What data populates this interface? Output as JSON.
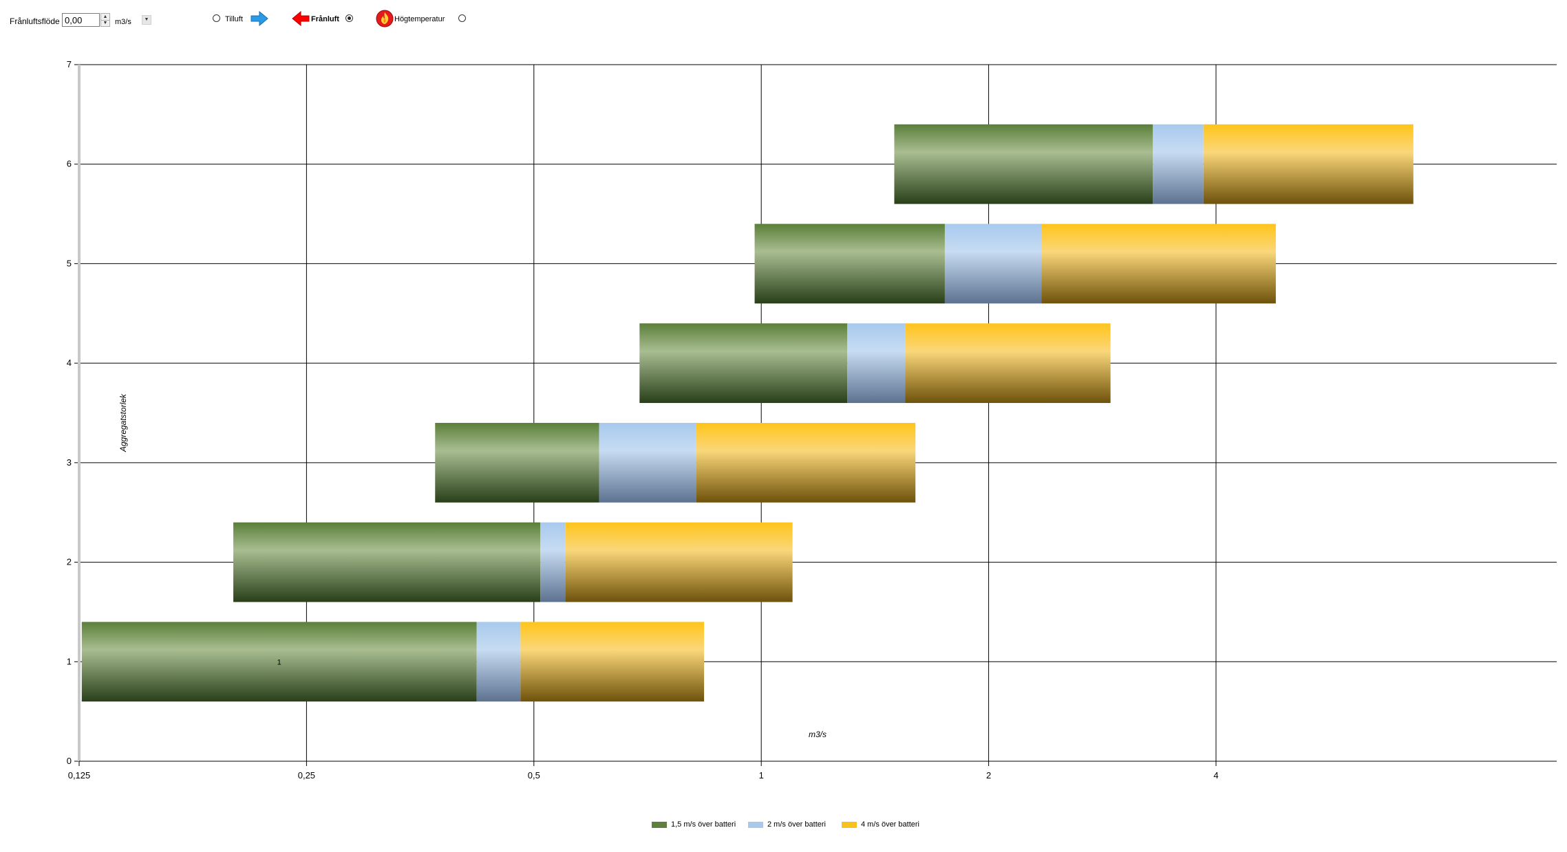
{
  "toolbar": {
    "flow_label": "Frånluftsflöde",
    "flow_value": "0,00",
    "unit_label": "m3/s",
    "radios": [
      {
        "label": "Tilluft",
        "checked": false,
        "icon": "arrow-right-icon"
      },
      {
        "label": "Frånluft",
        "checked": true,
        "icon": "arrow-left-icon"
      },
      {
        "label": "Högtemperatur",
        "checked": false,
        "icon": "fire-icon"
      }
    ]
  },
  "colors": {
    "green": "#5e7f3e",
    "blue": "#a9c8ea",
    "yellow": "#f6c21f",
    "grid": "#000000",
    "axis": "#c8c8c8"
  },
  "chart_data": {
    "type": "bar",
    "orientation": "horizontal",
    "stacked": true,
    "x_scale": "log2",
    "xlabel": "m3/s",
    "ylabel": "Aggregatstorlek",
    "xlim": [
      0.125,
      11.3
    ],
    "ylim": [
      0,
      7
    ],
    "x_ticks": [
      "0,125",
      "0,25",
      "0,5",
      "1",
      "2",
      "4"
    ],
    "x_tick_values": [
      0.125,
      0.25,
      0.5,
      1,
      2,
      4
    ],
    "y_ticks": [
      "0",
      "1",
      "2",
      "3",
      "4",
      "5",
      "6",
      "7"
    ],
    "categories": [
      "1",
      "2",
      "3",
      "4",
      "5",
      "6"
    ],
    "category_positions": [
      1,
      2,
      3,
      4,
      5,
      6
    ],
    "bar_start": [
      0.126,
      0.2,
      0.37,
      0.69,
      0.98,
      1.5
    ],
    "series": [
      {
        "name": "1,5 m/s över batteri",
        "color": "#5e7f3e",
        "end": [
          0.42,
          0.51,
          0.61,
          1.3,
          1.75,
          3.3
        ]
      },
      {
        "name": "2 m/s över batteri",
        "color": "#a9c8ea",
        "end": [
          0.48,
          0.55,
          0.82,
          1.55,
          2.35,
          3.85
        ]
      },
      {
        "name": "4 m/s över batteri",
        "color": "#f6c21f",
        "end": [
          0.84,
          1.1,
          1.6,
          2.9,
          4.8,
          7.3
        ]
      }
    ],
    "bar_labels": [
      "1",
      "",
      "",
      "",
      "",
      ""
    ],
    "legend_position": "bottom-center",
    "grid": true
  }
}
